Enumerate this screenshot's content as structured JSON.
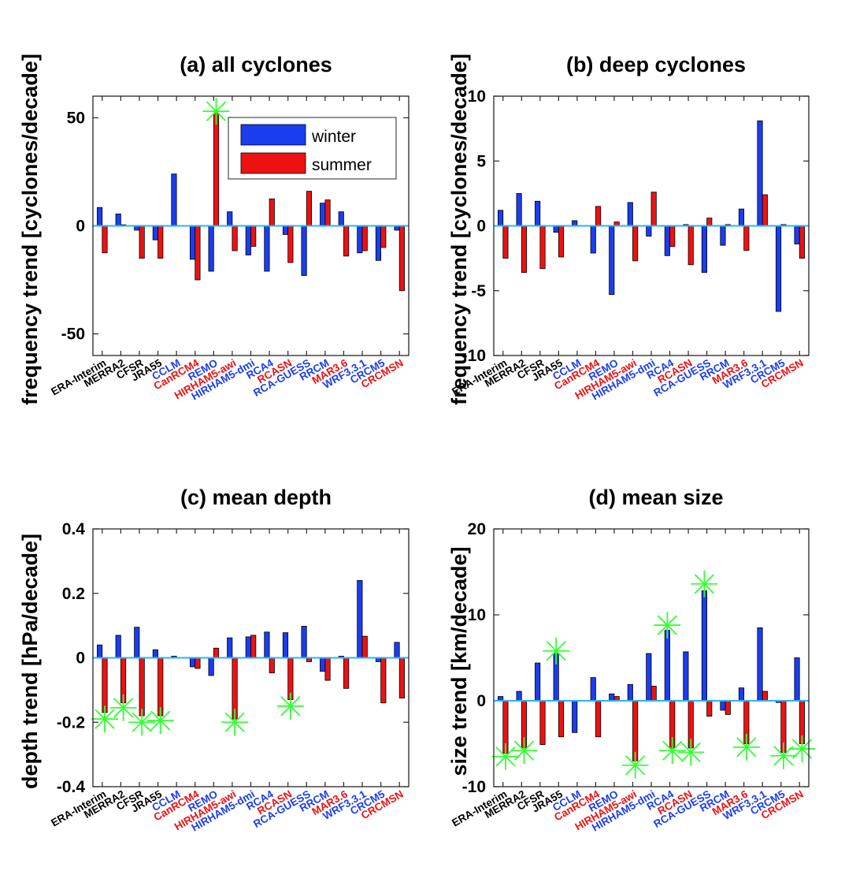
{
  "colors": {
    "winter": "#1a3df0",
    "summer": "#ee1111",
    "zero_line": "#2ab3ff",
    "marker": "#33ff33",
    "label_black": "#000000",
    "label_blue": "#1a3df0",
    "label_red": "#ee1111"
  },
  "legend": {
    "winter": "winter",
    "summer": "summer"
  },
  "models": [
    {
      "name": "ERA-Interim",
      "color": "label_black"
    },
    {
      "name": "MERRA2",
      "color": "label_black"
    },
    {
      "name": "CFSR",
      "color": "label_black"
    },
    {
      "name": "JRA55",
      "color": "label_black"
    },
    {
      "name": "CCLM",
      "color": "label_blue"
    },
    {
      "name": "CanRCM4",
      "color": "label_red"
    },
    {
      "name": "REMO",
      "color": "label_blue"
    },
    {
      "name": "HIRHAM5-awi",
      "color": "label_red"
    },
    {
      "name": "HIRHAM5-dmi",
      "color": "label_blue"
    },
    {
      "name": "RCA4",
      "color": "label_blue"
    },
    {
      "name": "RCASN",
      "color": "label_red"
    },
    {
      "name": "RCA-GUESS",
      "color": "label_blue"
    },
    {
      "name": "RRCM",
      "color": "label_blue"
    },
    {
      "name": "MAR3.6",
      "color": "label_red"
    },
    {
      "name": "WRF3.3.1",
      "color": "label_blue"
    },
    {
      "name": "CRCM5",
      "color": "label_blue"
    },
    {
      "name": "CRCMSN",
      "color": "label_red"
    }
  ],
  "chart_data": [
    {
      "type": "bar",
      "title": "(a) all cyclones",
      "ylabel": "frequency trend [cyclones/decade]",
      "ylim": [
        -60,
        60
      ],
      "yticks": [
        -50,
        0,
        50
      ],
      "legend": "top-right",
      "series": [
        {
          "name": "winter",
          "values": [
            8.5,
            5.5,
            -2,
            -6.5,
            24,
            -15.5,
            -21,
            6.5,
            -13.5,
            -21,
            -4,
            -23,
            10.5,
            6.5,
            -12.5,
            -16,
            -2
          ]
        },
        {
          "name": "summer",
          "values": [
            -12.5,
            0.5,
            -15,
            -15,
            0,
            -25,
            52,
            -11.5,
            -9.5,
            12.5,
            -17,
            16,
            12,
            -14,
            -11.5,
            -10,
            -30
          ]
        }
      ],
      "markers": [
        {
          "index": 6,
          "series": "summer",
          "value": 53
        }
      ]
    },
    {
      "type": "bar",
      "title": "(b) deep cyclones",
      "ylabel": "frequency trend [cyclones/decade]",
      "ylim": [
        -10,
        10
      ],
      "yticks": [
        -10,
        -5,
        0,
        5,
        10
      ],
      "series": [
        {
          "name": "winter",
          "values": [
            1.2,
            2.5,
            1.9,
            -0.5,
            0.4,
            -2.1,
            -5.3,
            1.8,
            -0.8,
            -2.3,
            0.1,
            -3.6,
            -1.5,
            1.3,
            8.1,
            -6.6,
            -1.4
          ]
        },
        {
          "name": "summer",
          "values": [
            -2.5,
            -3.6,
            -3.3,
            -2.4,
            0,
            1.5,
            0.3,
            -2.7,
            2.6,
            -1.6,
            -3,
            0.6,
            0.1,
            -1.9,
            2.4,
            0.1,
            -2.5
          ]
        }
      ],
      "markers": []
    },
    {
      "type": "bar",
      "title": "(c) mean depth",
      "ylabel": "depth trend [hPa/decade]",
      "ylim": [
        -0.4,
        0.4
      ],
      "yticks": [
        -0.4,
        -0.2,
        0,
        0.2,
        0.4
      ],
      "series": [
        {
          "name": "winter",
          "values": [
            0.04,
            0.07,
            0.095,
            0.025,
            0.005,
            -0.028,
            -0.055,
            0.062,
            0.065,
            0.08,
            0.078,
            0.098,
            -0.042,
            0.005,
            0.24,
            -0.012,
            0.048
          ]
        },
        {
          "name": "summer",
          "values": [
            -0.17,
            -0.14,
            -0.18,
            -0.18,
            0,
            -0.033,
            0.03,
            -0.19,
            0.07,
            -0.047,
            -0.13,
            -0.012,
            -0.07,
            -0.095,
            0.067,
            -0.14,
            -0.125
          ]
        }
      ],
      "markers": [
        {
          "index": 0,
          "series": "summer",
          "value": -0.19
        },
        {
          "index": 1,
          "series": "summer",
          "value": -0.155
        },
        {
          "index": 2,
          "series": "summer",
          "value": -0.2
        },
        {
          "index": 3,
          "series": "summer",
          "value": -0.195
        },
        {
          "index": 7,
          "series": "summer",
          "value": -0.2
        },
        {
          "index": 10,
          "series": "summer",
          "value": -0.15
        }
      ]
    },
    {
      "type": "bar",
      "title": "(d) mean size",
      "ylabel": "size trend [km/decade]",
      "ylim": [
        -10,
        20
      ],
      "yticks": [
        -10,
        0,
        10,
        20
      ],
      "series": [
        {
          "name": "winter",
          "values": [
            0.5,
            1.1,
            4.4,
            5.5,
            -3.7,
            2.7,
            0.8,
            1.9,
            5.5,
            8.2,
            5.7,
            12.8,
            -1.1,
            1.5,
            8.5,
            -0.2,
            5
          ]
        },
        {
          "name": "summer",
          "values": [
            -6.1,
            -5.5,
            -5.1,
            -4.2,
            0,
            -4.2,
            0.5,
            -7,
            1.7,
            -5.5,
            -5.5,
            -1.8,
            -1.6,
            -5,
            1.1,
            -6,
            -5
          ]
        }
      ],
      "markers": [
        {
          "index": 0,
          "series": "summer",
          "value": -6.5
        },
        {
          "index": 1,
          "series": "summer",
          "value": -5.8
        },
        {
          "index": 3,
          "series": "winter",
          "value": 5.8
        },
        {
          "index": 7,
          "series": "summer",
          "value": -7.5
        },
        {
          "index": 9,
          "series": "winter",
          "value": 8.8
        },
        {
          "index": 9,
          "series": "summer",
          "value": -5.8
        },
        {
          "index": 10,
          "series": "summer",
          "value": -6
        },
        {
          "index": 11,
          "series": "winter",
          "value": 13.6
        },
        {
          "index": 13,
          "series": "summer",
          "value": -5.4
        },
        {
          "index": 15,
          "series": "summer",
          "value": -6.4
        },
        {
          "index": 16,
          "series": "summer",
          "value": -5.6
        }
      ]
    }
  ]
}
